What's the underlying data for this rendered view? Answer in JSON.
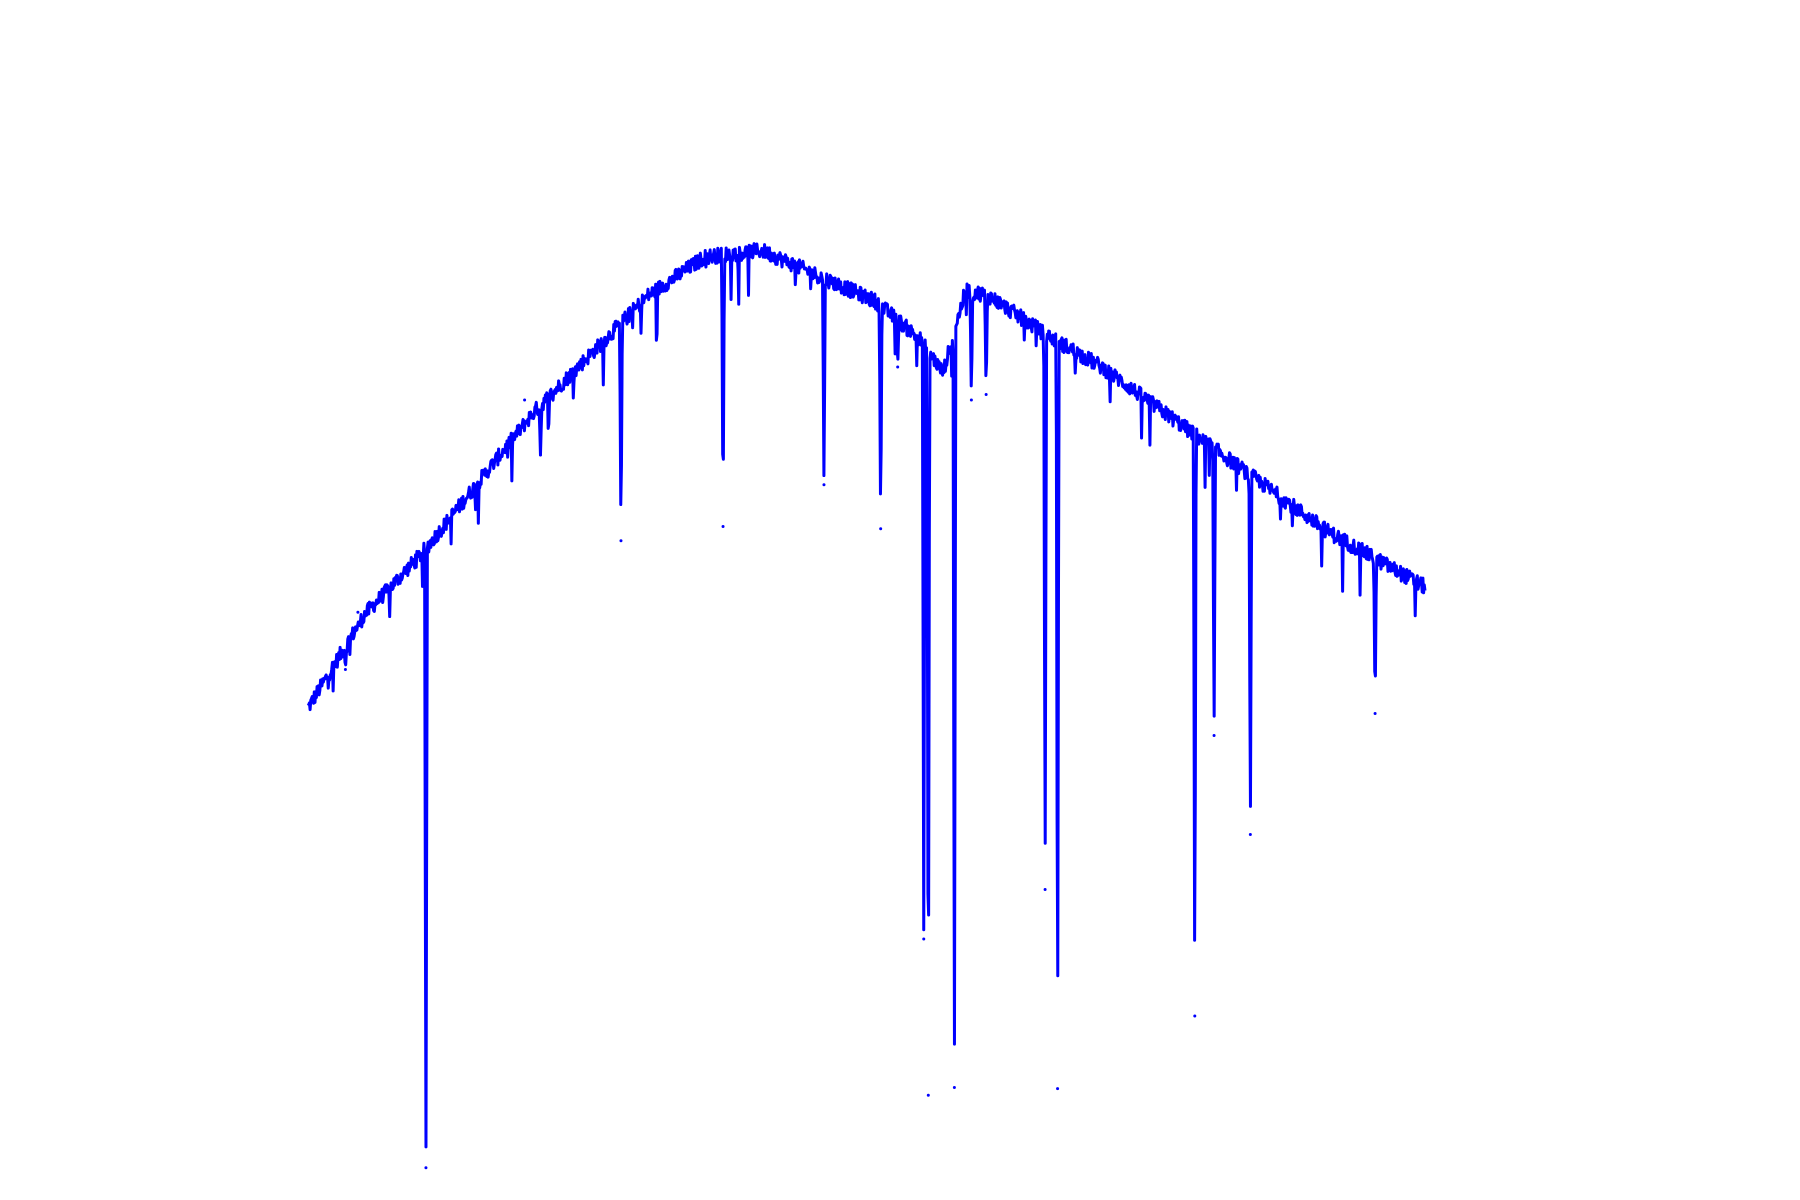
{
  "chart_data": {
    "type": "line",
    "title": "",
    "xlabel": "",
    "ylabel": "",
    "axes_visible": false,
    "grid": false,
    "legend": "none",
    "xlim": [
      0,
      1000
    ],
    "ylim": [
      0,
      1000
    ],
    "series": [
      {
        "color": "#0000ff",
        "continuum_anchors": {
          "x": [
            0,
            50,
            100,
            200,
            300,
            350,
            400,
            500,
            540,
            560,
            580,
            600,
            650,
            700,
            800,
            900,
            985
          ],
          "y": [
            420,
            505,
            560,
            690,
            795,
            830,
            836,
            790,
            755,
            725,
            800,
            795,
            760,
            730,
            655,
            580,
            530
          ]
        },
        "absorption_lines": {
          "x": [
            33,
            44,
            104,
            191,
            205,
            276,
            366,
            455,
            505,
            520,
            543,
            547,
            570,
            585,
            598,
            650,
            661,
            782,
            799,
            831,
            941
          ],
          "y": [
            455,
            507,
            2,
            700,
            650,
            572,
            585,
            623,
            583,
            730,
            210,
            68,
            75,
            700,
            705,
            255,
            74,
            140,
            395,
            305,
            415
          ]
        }
      }
    ]
  }
}
